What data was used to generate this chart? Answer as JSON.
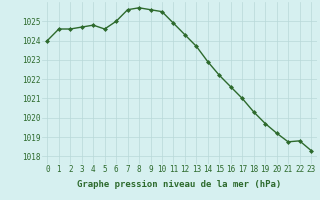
{
  "x": [
    0,
    1,
    2,
    3,
    4,
    5,
    6,
    7,
    8,
    9,
    10,
    11,
    12,
    13,
    14,
    15,
    16,
    17,
    18,
    19,
    20,
    21,
    22,
    23
  ],
  "y": [
    1024.0,
    1024.6,
    1024.6,
    1024.7,
    1024.8,
    1024.6,
    1025.0,
    1025.6,
    1025.7,
    1025.6,
    1025.5,
    1024.9,
    1024.3,
    1023.7,
    1022.9,
    1022.2,
    1021.6,
    1021.0,
    1020.3,
    1019.7,
    1019.2,
    1018.75,
    1018.8,
    1018.3
  ],
  "line_color": "#2d6a2d",
  "marker": "D",
  "marker_size": 2,
  "line_width": 1.0,
  "bg_color": "#d6f0f0",
  "grid_color": "#b8d8d8",
  "xlabel": "Graphe pression niveau de la mer (hPa)",
  "xlabel_fontsize": 6.5,
  "xlabel_bold": true,
  "ylabel_ticks": [
    1018,
    1019,
    1020,
    1021,
    1022,
    1023,
    1024,
    1025
  ],
  "ylim": [
    1017.6,
    1026.0
  ],
  "xlim": [
    -0.5,
    23.5
  ],
  "tick_fontsize": 5.5,
  "xtick_labels": [
    "0",
    "1",
    "2",
    "3",
    "4",
    "5",
    "6",
    "7",
    "8",
    "9",
    "10",
    "11",
    "12",
    "13",
    "14",
    "15",
    "16",
    "17",
    "18",
    "19",
    "20",
    "21",
    "22",
    "23"
  ]
}
